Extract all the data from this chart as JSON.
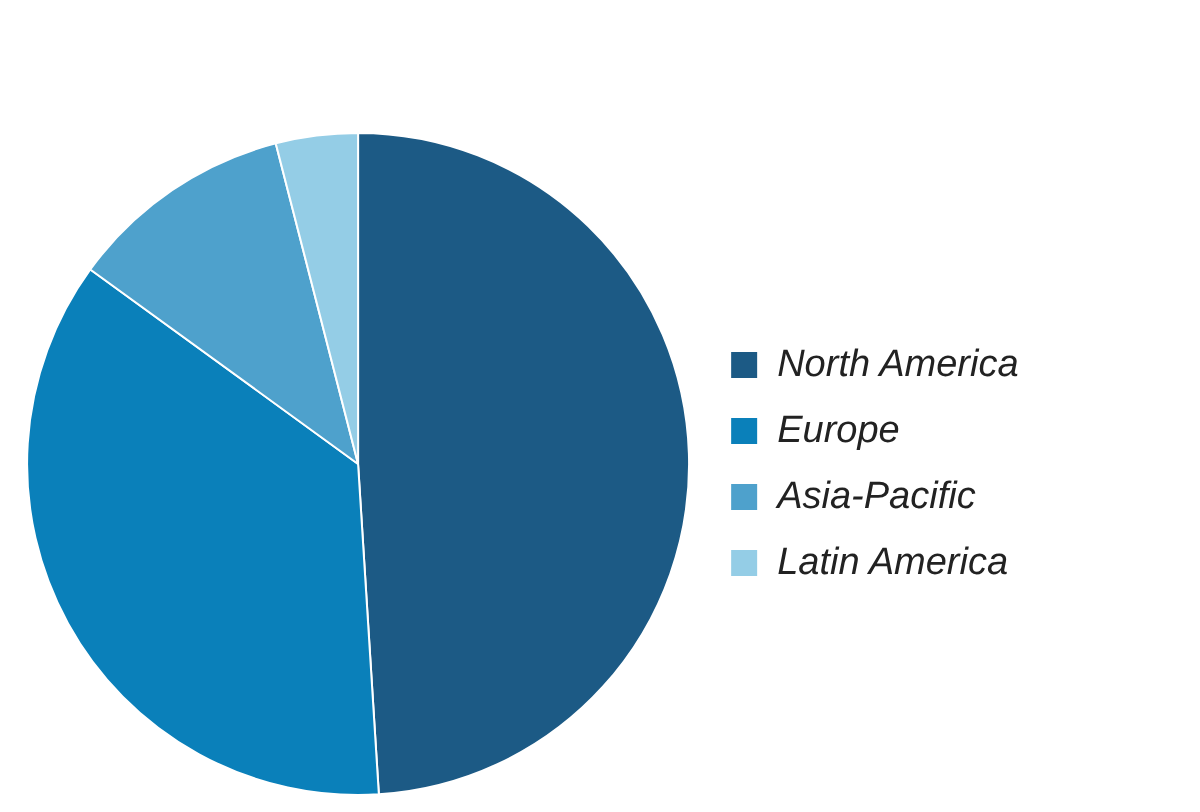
{
  "chart_data": {
    "type": "pie",
    "categories": [
      "North America",
      "Europe",
      "Asia-Pacific",
      "Latin America"
    ],
    "values": [
      49,
      36,
      11,
      4
    ],
    "colors": [
      "#1c5a85",
      "#0a80ba",
      "#4ea1cc",
      "#94cde6"
    ],
    "legend": "right"
  }
}
